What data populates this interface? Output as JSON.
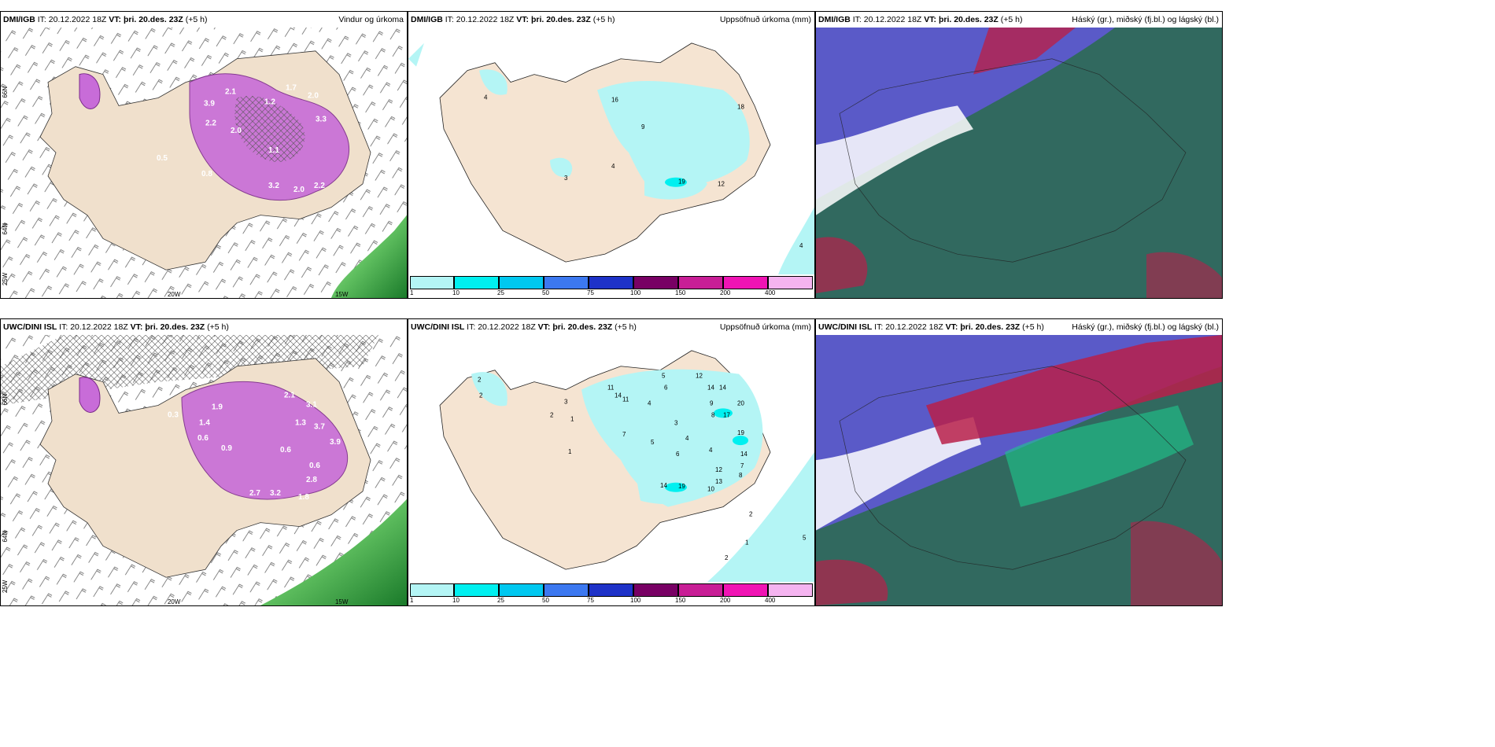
{
  "rows": [
    {
      "model": "DMI/IGB",
      "it_label": "IT:",
      "it": "20.12.2022 18Z",
      "vt_label": "VT:",
      "vt": "þri. 20.des. 23Z",
      "lead": "(+5 h)"
    },
    {
      "model": "UWC/DINI ISL",
      "it_label": "IT:",
      "it": "20.12.2022 18Z",
      "vt_label": "VT:",
      "vt": "þri. 20.des. 23Z",
      "lead": "(+5 h)"
    }
  ],
  "panel_titles": {
    "wind": "Vindur og úrkoma",
    "accum": "Uppsöfnuð úrkoma (mm)",
    "cloud": "Háský (gr.), miðský (fj.bl.) og lágský (bl.)"
  },
  "axis_labels": {
    "lon20": "20W",
    "lon15": "15W",
    "lat66": "66N",
    "lat64": "64N",
    "lat25": "25W"
  },
  "colorbar": {
    "ticks": [
      "1",
      "10",
      "25",
      "50",
      "75",
      "100",
      "150",
      "200",
      "400"
    ],
    "colors": [
      "#b4f5f5",
      "#00f0f0",
      "#00c8f0",
      "#3c78f0",
      "#1e32c8",
      "#780064",
      "#c81e96",
      "#f014b4",
      "#f5b4f0"
    ]
  },
  "wind_values": {
    "top": [
      "1.7",
      "2.0",
      "2.1",
      "1.2",
      "2.2",
      "3.9",
      "2.0",
      "3.3",
      "0.5",
      "0.8",
      "3.2",
      "2.0",
      "2.2",
      "1.1"
    ],
    "bottom": [
      "2.1",
      "3.1",
      "1.9",
      "1.3",
      "3.7",
      "3.9",
      "1.4",
      "0.6",
      "0.3",
      "2.7",
      "3.2",
      "1.8",
      "2.8",
      "0.6",
      "0.6",
      "0.9"
    ]
  },
  "accum_values": {
    "top": [
      "4",
      "16",
      "9",
      "18",
      "4",
      "3",
      "19",
      "12",
      "4"
    ],
    "bottom": [
      "2",
      "2",
      "3",
      "2",
      "1",
      "1",
      "11",
      "14",
      "11",
      "5",
      "6",
      "12",
      "14",
      "14",
      "9",
      "20",
      "17",
      "8",
      "19",
      "4",
      "14",
      "7",
      "5",
      "4",
      "3",
      "6",
      "4",
      "12",
      "14",
      "19",
      "10",
      "13",
      "7",
      "8",
      "2",
      "1",
      "2",
      "5"
    ]
  }
}
